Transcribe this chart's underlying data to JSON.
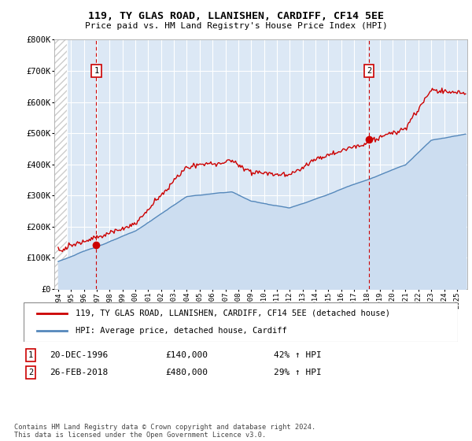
{
  "title": "119, TY GLAS ROAD, LLANISHEN, CARDIFF, CF14 5EE",
  "subtitle": "Price paid vs. HM Land Registry's House Price Index (HPI)",
  "xlim_start": 1993.7,
  "xlim_end": 2025.8,
  "ylim": [
    0,
    800000
  ],
  "yticks": [
    0,
    100000,
    200000,
    300000,
    400000,
    500000,
    600000,
    700000,
    800000
  ],
  "ytick_labels": [
    "£0",
    "£100K",
    "£200K",
    "£300K",
    "£400K",
    "£500K",
    "£600K",
    "£700K",
    "£800K"
  ],
  "sale1_x": 1996.97,
  "sale1_y": 140000,
  "sale2_x": 2018.15,
  "sale2_y": 480000,
  "line_color_property": "#cc0000",
  "line_color_hpi": "#5588bb",
  "hpi_fill_color": "#ccddf0",
  "background_plot": "#dce8f5",
  "grid_color": "#ffffff",
  "legend_label_property": "119, TY GLAS ROAD, LLANISHEN, CARDIFF, CF14 5EE (detached house)",
  "legend_label_hpi": "HPI: Average price, detached house, Cardiff",
  "annotation1_date": "20-DEC-1996",
  "annotation1_price": "£140,000",
  "annotation1_hpi": "42% ↑ HPI",
  "annotation2_date": "26-FEB-2018",
  "annotation2_price": "£480,000",
  "annotation2_hpi": "29% ↑ HPI",
  "footer": "Contains HM Land Registry data © Crown copyright and database right 2024.\nThis data is licensed under the Open Government Licence v3.0."
}
